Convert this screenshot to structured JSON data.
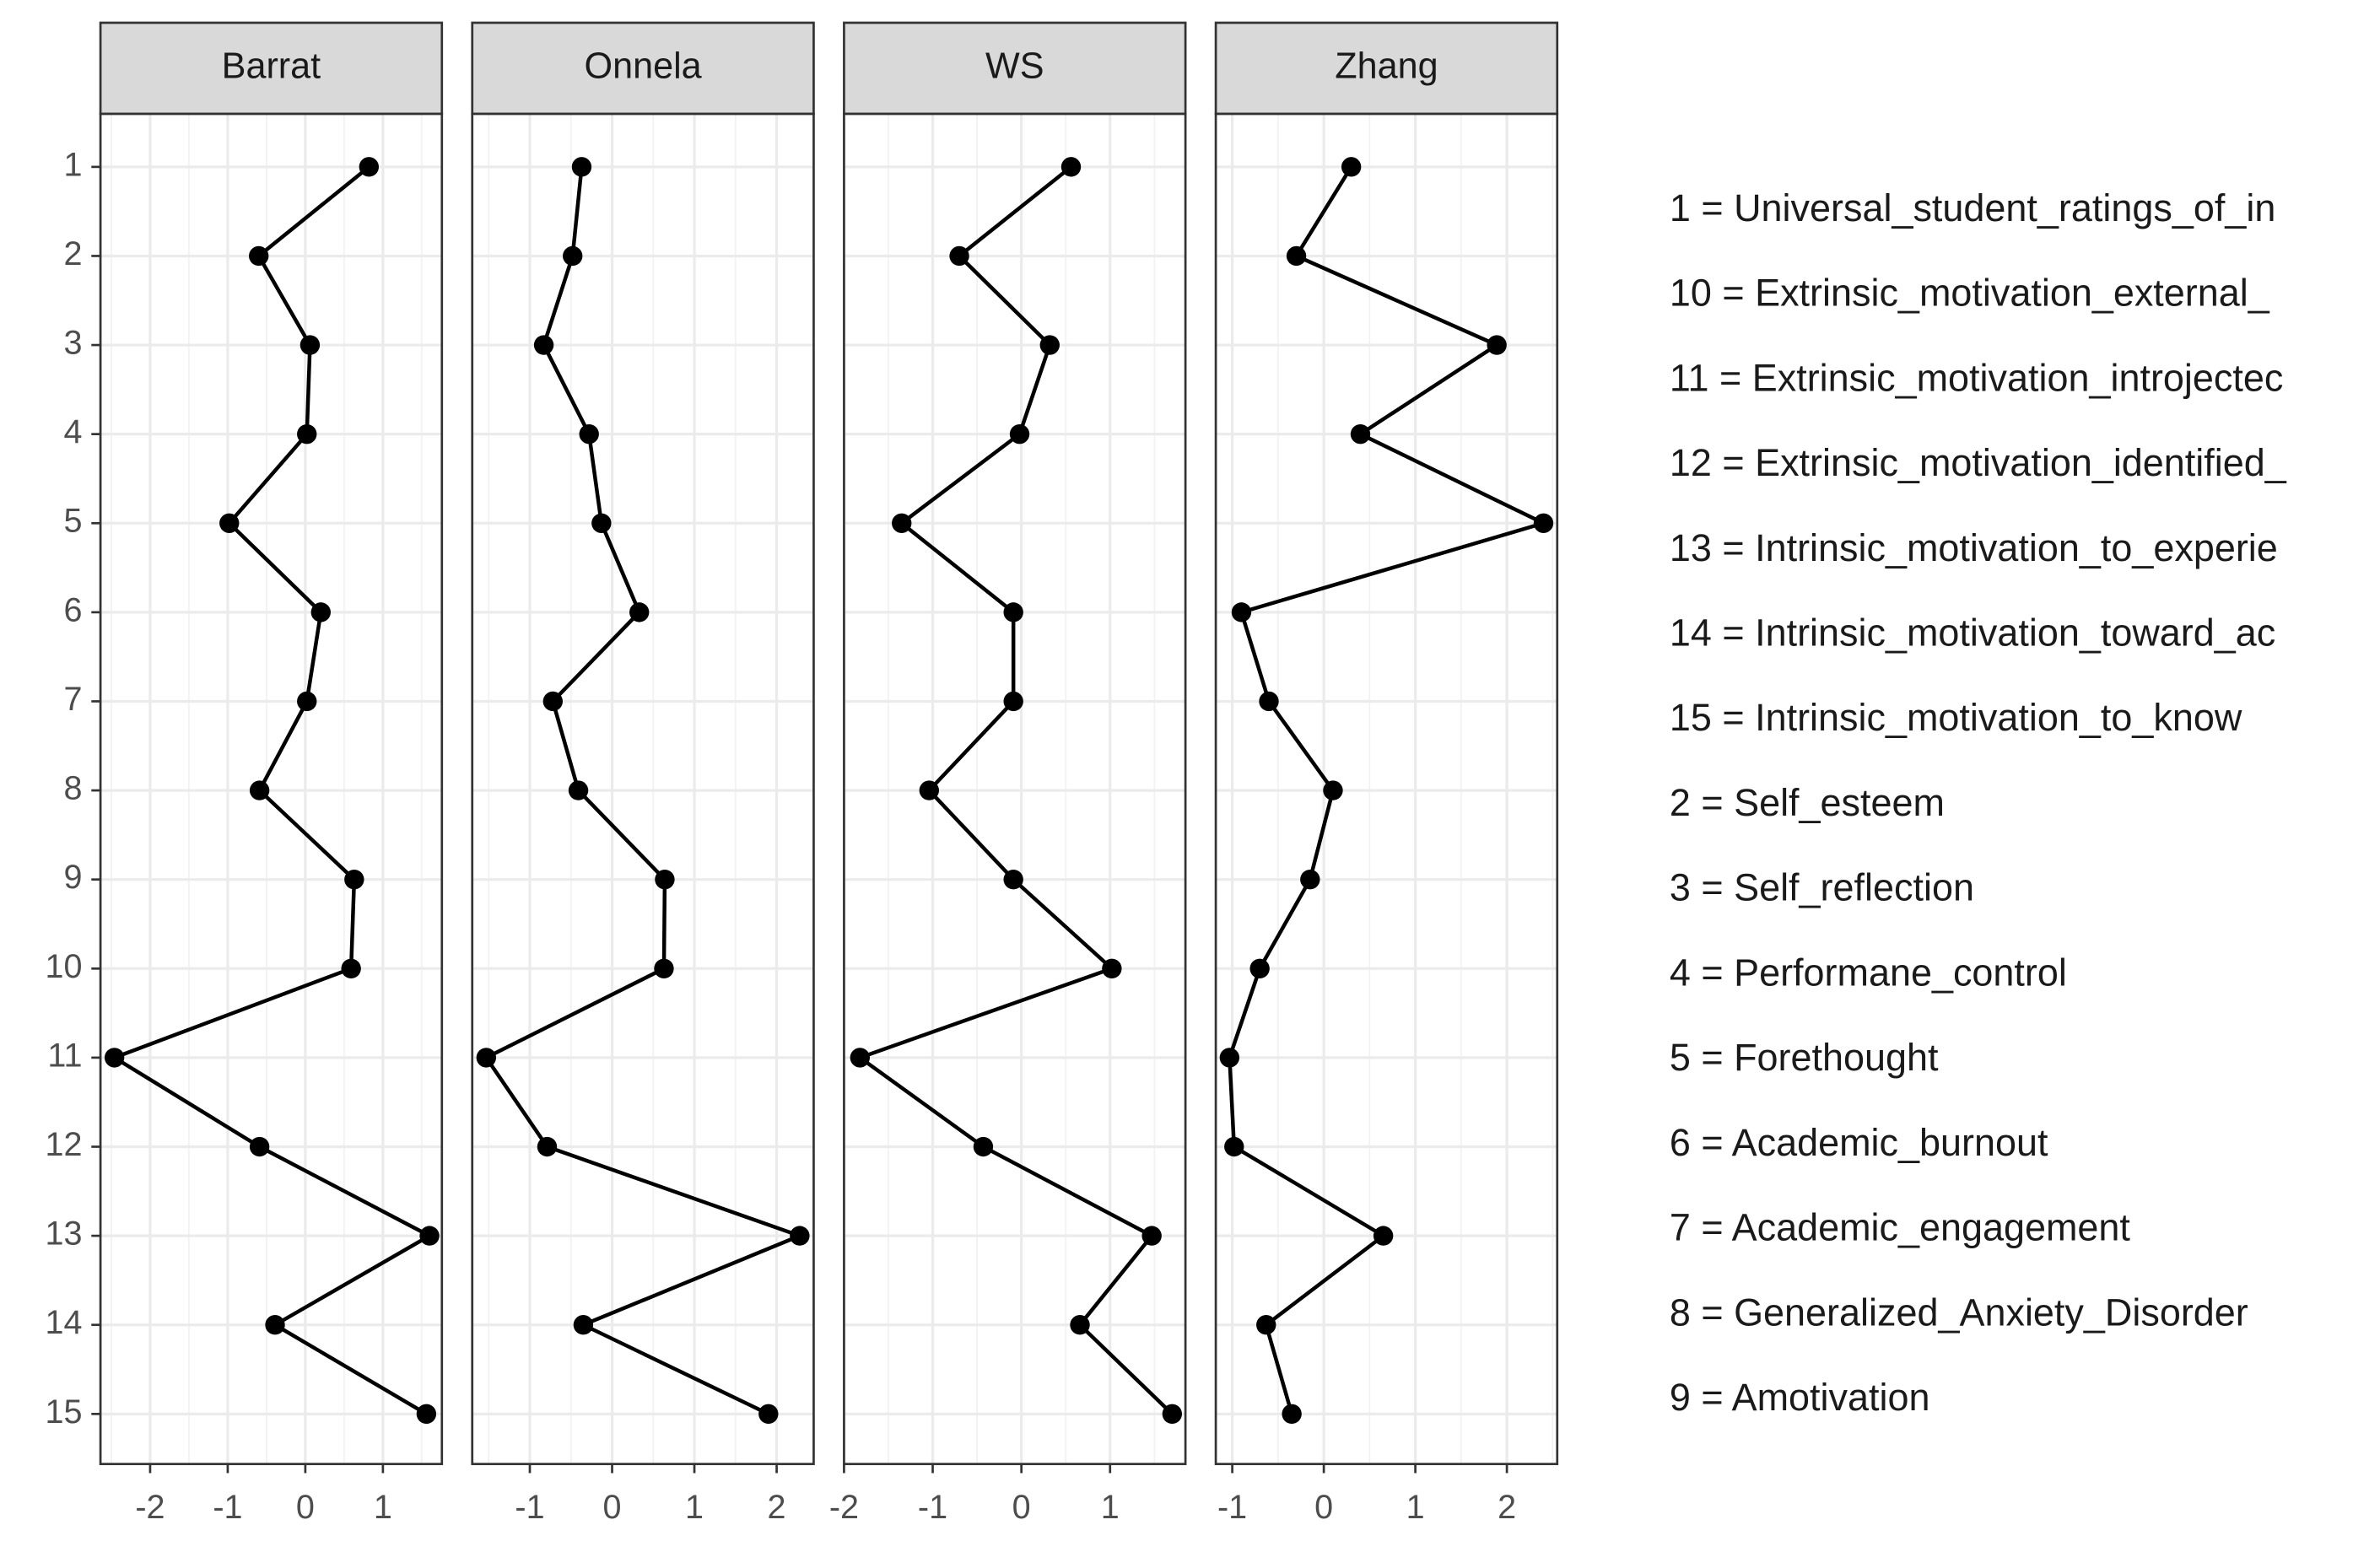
{
  "chart_data": [
    {
      "type": "line",
      "title": "Barrat",
      "categories": [
        "1",
        "2",
        "3",
        "4",
        "5",
        "6",
        "7",
        "8",
        "9",
        "10",
        "11",
        "12",
        "13",
        "14",
        "15"
      ],
      "values": [
        0.82,
        -0.6,
        0.06,
        0.02,
        -0.98,
        0.2,
        0.02,
        -0.59,
        0.63,
        0.59,
        -2.46,
        -0.59,
        1.6,
        -0.39,
        1.56
      ],
      "xlim": [
        -2.64,
        1.76
      ],
      "xticks": [
        -2,
        -1,
        0,
        1
      ],
      "color": "#000000",
      "grid": true
    },
    {
      "type": "line",
      "title": "Onnela",
      "values": [
        -0.37,
        -0.48,
        -0.83,
        -0.28,
        -0.13,
        0.33,
        -0.72,
        -0.41,
        0.64,
        0.63,
        -1.53,
        -0.79,
        2.28,
        -0.35,
        1.9
      ],
      "xlim": [
        -1.7,
        2.45
      ],
      "xticks": [
        -1,
        0,
        1,
        2
      ],
      "color": "#000000",
      "grid": true
    },
    {
      "type": "line",
      "title": "WS",
      "values": [
        0.56,
        -0.7,
        0.32,
        -0.02,
        -1.35,
        -0.09,
        -0.09,
        -1.04,
        -0.09,
        1.02,
        -1.82,
        -0.43,
        1.47,
        0.66,
        1.7
      ],
      "xlim": [
        -2.0,
        1.85
      ],
      "xticks": [
        -2,
        -1,
        0,
        1
      ],
      "color": "#000000",
      "grid": true
    },
    {
      "type": "line",
      "title": "Zhang",
      "values": [
        0.3,
        -0.3,
        1.89,
        0.4,
        2.4,
        -0.9,
        -0.6,
        0.1,
        -0.15,
        -0.7,
        -1.03,
        -0.98,
        0.65,
        -0.63,
        -0.35
      ],
      "xlim": [
        -1.18,
        2.55
      ],
      "xticks": [
        -1,
        0,
        1,
        2
      ],
      "color": "#000000",
      "grid": true
    }
  ],
  "legend_key": [
    "1 = Universal_student_ratings_of_in",
    "10 = Extrinsic_motivation_external_",
    "11 = Extrinsic_motivation_introjectec",
    "12 = Extrinsic_motivation_identified_",
    "13 = Intrinsic_motivation_to_experie",
    "14 = Intrinsic_motivation_toward_ac",
    "15 = Intrinsic_motivation_to_know",
    "2 = Self_esteem",
    "3 = Self_reflection",
    "4 = Performane_control",
    "5 = Forethought",
    "6 = Academic_burnout",
    "7 = Academic_engagement",
    "8 = Generalized_Anxiety_Disorder",
    "9 = Amotivation"
  ]
}
